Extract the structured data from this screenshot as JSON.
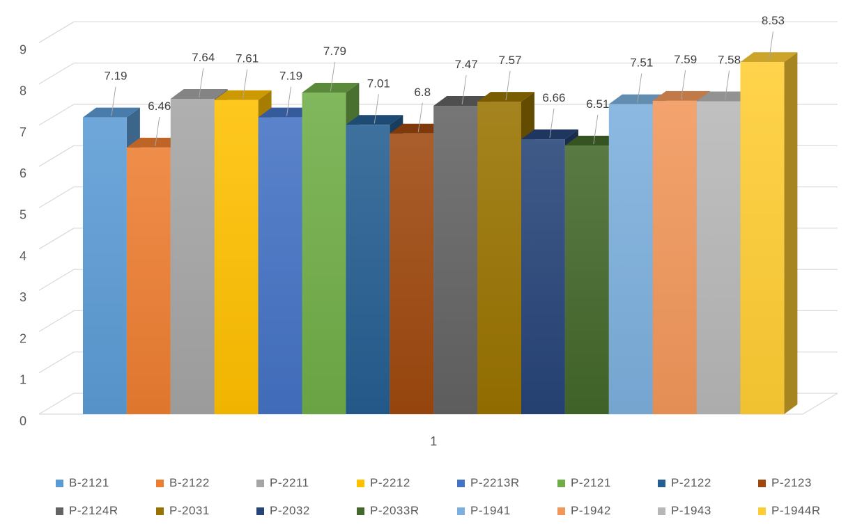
{
  "chart_data": {
    "type": "bar",
    "categories": [
      "1"
    ],
    "ylim": [
      0,
      9
    ],
    "y_ticks": [
      "0",
      "1",
      "2",
      "3",
      "4",
      "5",
      "6",
      "7",
      "8",
      "9"
    ],
    "grid": true,
    "legend_position": "bottom",
    "style": "3d-clustered-column",
    "series": [
      {
        "name": "B-2121",
        "value": 7.19,
        "label": "7.19",
        "color": "#5B9BD5"
      },
      {
        "name": "B-2122",
        "value": 6.46,
        "label": "6.46",
        "color": "#ED7D31"
      },
      {
        "name": "P-2211",
        "value": 7.64,
        "label": "7.64",
        "color": "#A5A5A5"
      },
      {
        "name": "P-2212",
        "value": 7.61,
        "label": "7.61",
        "color": "#FFC000"
      },
      {
        "name": "P-2213R",
        "value": 7.19,
        "label": "7.19",
        "color": "#4472C4"
      },
      {
        "name": "P-2121",
        "value": 7.79,
        "label": "7.79",
        "color": "#70AD47"
      },
      {
        "name": "P-2122",
        "value": 7.01,
        "label": "7.01",
        "color": "#255E91"
      },
      {
        "name": "P-2123",
        "value": 6.8,
        "label": "6.8",
        "color": "#9E480E"
      },
      {
        "name": "P-2124R",
        "value": 7.47,
        "label": "7.47",
        "color": "#636363"
      },
      {
        "name": "P-2031",
        "value": 7.57,
        "label": "7.57",
        "color": "#997300"
      },
      {
        "name": "P-2032",
        "value": 6.66,
        "label": "6.66",
        "color": "#264478"
      },
      {
        "name": "P-2033R",
        "value": 6.51,
        "label": "6.51",
        "color": "#43682B"
      },
      {
        "name": "P-1941",
        "value": 7.51,
        "label": "7.51",
        "color": "#7CAFDD"
      },
      {
        "name": "P-1942",
        "value": 7.59,
        "label": "7.59",
        "color": "#F1975A"
      },
      {
        "name": "P-1943",
        "value": 7.58,
        "label": "7.58",
        "color": "#B7B7B7"
      },
      {
        "name": "P-1944R",
        "value": 8.53,
        "label": "8.53",
        "color": "#FFCD33"
      }
    ]
  }
}
